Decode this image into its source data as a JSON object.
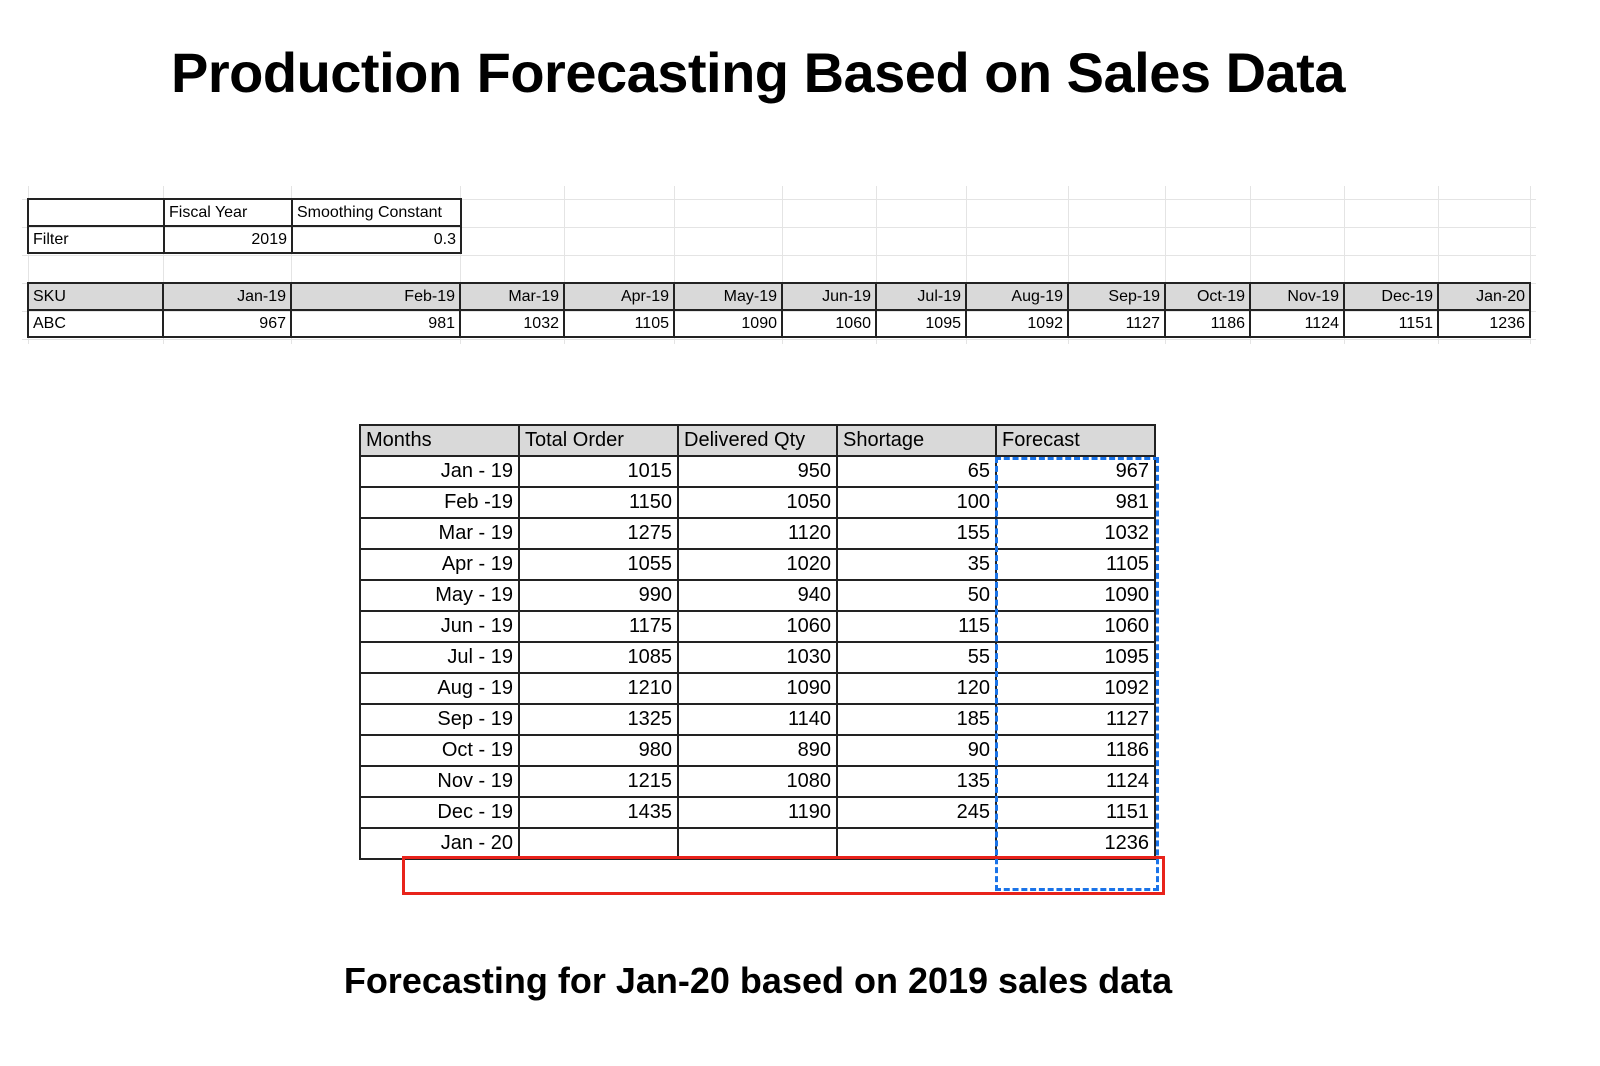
{
  "title": "Production Forecasting Based on Sales Data",
  "subtitle": "Forecasting for Jan-20 based on 2019 sales data",
  "filter_table": {
    "headers": [
      "",
      "Fiscal Year",
      "Smoothing Constant"
    ],
    "row": {
      "label": "Filter",
      "fiscal_year": "2019",
      "smoothing_constant": "0.3"
    }
  },
  "sku_table": {
    "headers": [
      "SKU",
      "Jan-19",
      "Feb-19",
      "Mar-19",
      "Apr-19",
      "May-19",
      "Jun-19",
      "Jul-19",
      "Aug-19",
      "Sep-19",
      "Oct-19",
      "Nov-19",
      "Dec-19",
      "Jan-20"
    ],
    "row": [
      "ABC",
      "967",
      "981",
      "1032",
      "1105",
      "1090",
      "1060",
      "1095",
      "1092",
      "1127",
      "1186",
      "1124",
      "1151",
      "1236"
    ]
  },
  "forecast_table": {
    "headers": [
      "Months",
      "Total Order",
      "Delivered Qty",
      "Shortage",
      "Forecast"
    ],
    "rows": [
      [
        "Jan - 19",
        "1015",
        "950",
        "65",
        "967"
      ],
      [
        "Feb -19",
        "1150",
        "1050",
        "100",
        "981"
      ],
      [
        "Mar - 19",
        "1275",
        "1120",
        "155",
        "1032"
      ],
      [
        "Apr - 19",
        "1055",
        "1020",
        "35",
        "1105"
      ],
      [
        "May - 19",
        "990",
        "940",
        "50",
        "1090"
      ],
      [
        "Jun - 19",
        "1175",
        "1060",
        "115",
        "1060"
      ],
      [
        "Jul - 19",
        "1085",
        "1030",
        "55",
        "1095"
      ],
      [
        "Aug - 19",
        "1210",
        "1090",
        "120",
        "1092"
      ],
      [
        "Sep - 19",
        "1325",
        "1140",
        "185",
        "1127"
      ],
      [
        "Oct - 19",
        "980",
        "890",
        "90",
        "1186"
      ],
      [
        "Nov - 19",
        "1215",
        "1080",
        "135",
        "1124"
      ],
      [
        "Dec - 19",
        "1435",
        "1190",
        "245",
        "1151"
      ],
      [
        "Jan - 20",
        "",
        "",
        "",
        "1236"
      ]
    ]
  },
  "colors": {
    "forecast_selection": "#1a73e8",
    "highlight_row": "#e8231b",
    "header_bg": "#d9d9d9"
  }
}
